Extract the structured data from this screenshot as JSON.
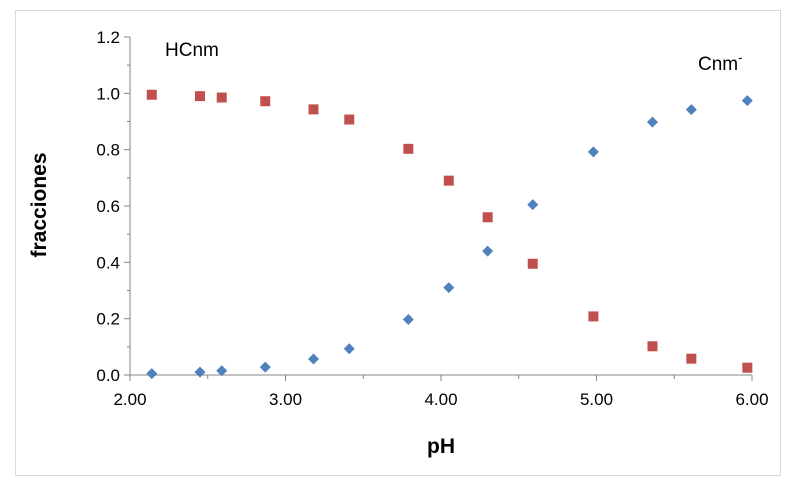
{
  "chart_data": {
    "type": "scatter",
    "xlabel": "pH",
    "ylabel": "fracciones",
    "xlim": [
      2.0,
      6.0
    ],
    "ylim": [
      0.0,
      1.2
    ],
    "x_ticks": [
      "2.00",
      "3.00",
      "4.00",
      "5.00",
      "6.00"
    ],
    "y_ticks": [
      "0.0",
      "0.2",
      "0.4",
      "0.6",
      "0.8",
      "1.0",
      "1.2"
    ],
    "grid": false,
    "legend": "none",
    "annotations": {
      "hcnm": "HCnm",
      "cnm": "Cnm",
      "cnm_sup": "-"
    },
    "series": [
      {
        "marker": "square",
        "color": "#c0504d",
        "x": [
          2.14,
          2.45,
          2.59,
          2.87,
          3.18,
          3.41,
          3.79,
          4.05,
          4.3,
          4.59,
          4.98,
          5.36,
          5.61,
          5.97
        ],
        "y": [
          0.995,
          0.99,
          0.985,
          0.972,
          0.943,
          0.907,
          0.803,
          0.69,
          0.56,
          0.395,
          0.208,
          0.102,
          0.058,
          0.026
        ]
      },
      {
        "marker": "diamond",
        "color": "#4f81bd",
        "x": [
          2.14,
          2.45,
          2.59,
          2.87,
          3.18,
          3.41,
          3.79,
          4.05,
          4.3,
          4.59,
          4.98,
          5.36,
          5.61,
          5.97
        ],
        "y": [
          0.005,
          0.01,
          0.015,
          0.028,
          0.057,
          0.093,
          0.197,
          0.31,
          0.44,
          0.605,
          0.792,
          0.898,
          0.942,
          0.974
        ]
      }
    ]
  }
}
